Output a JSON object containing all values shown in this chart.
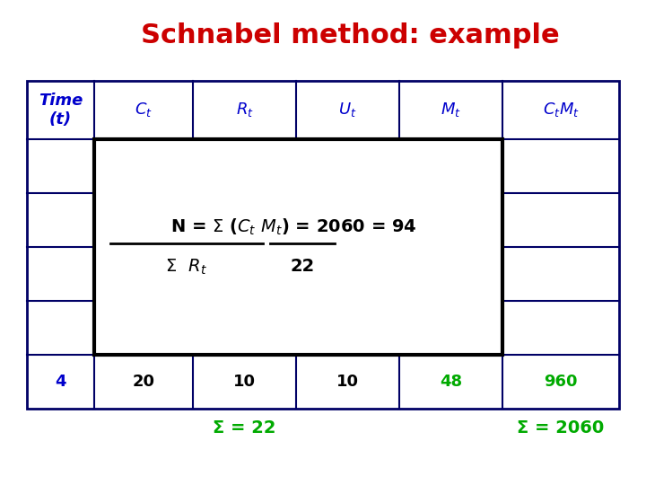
{
  "title": "Schnabel method: example",
  "title_color": "#cc0000",
  "title_fontsize": 22,
  "col_header_color": "#0000cc",
  "outer_border_color": "#000066",
  "inner_box_color": "#000000",
  "last_row": [
    "4",
    "20",
    "10",
    "10",
    "48",
    "960"
  ],
  "last_row_colors": [
    "#0000cc",
    "#000000",
    "#000000",
    "#000000",
    "#00aa00",
    "#00aa00"
  ],
  "sum_labels": [
    "Σ = 22",
    "Σ = 2060"
  ],
  "sum_color": "#00aa00"
}
